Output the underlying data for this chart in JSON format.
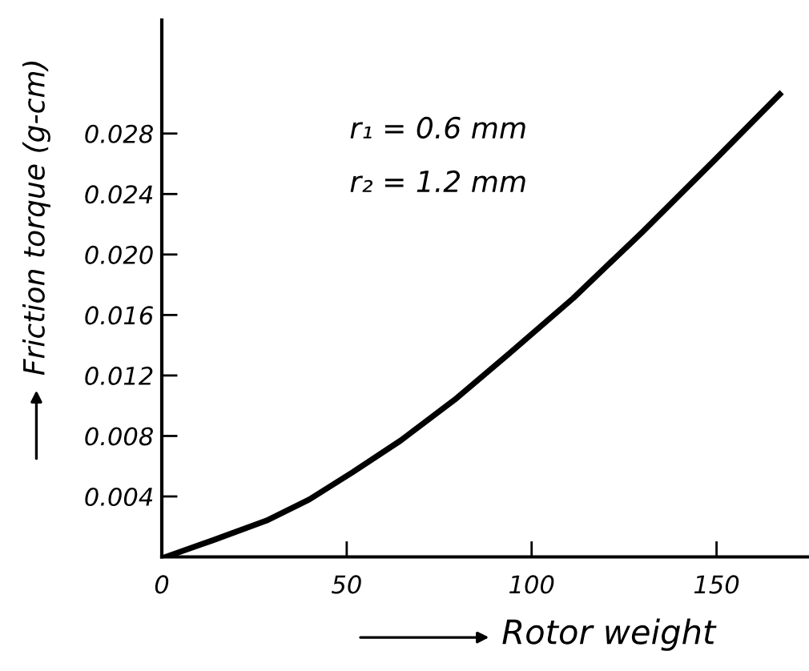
{
  "chart_data": {
    "type": "line",
    "xlabel": "Rotor weight",
    "ylabel": "Friction torque (g-cm)",
    "annotations": [
      "r₁ = 0.6 mm",
      "r₂ = 1.2 mm"
    ],
    "x": [
      1,
      13.8,
      28.3,
      39.9,
      51.6,
      64.6,
      79.2,
      93.7,
      111.2,
      130.0,
      148.9,
      167.1
    ],
    "series": [
      {
        "color": "#000000",
        "values": [
          0,
          0.0011,
          0.0024,
          0.0038,
          0.0056,
          0.0077,
          0.0104,
          0.0134,
          0.0171,
          0.0215,
          0.0261,
          0.0306
        ]
      }
    ],
    "xlim": [
      0,
      175
    ],
    "ylim": [
      0,
      0.0355
    ],
    "xticks": [
      0,
      50,
      100,
      150
    ],
    "yticks": [
      {
        "value": 0,
        "label": null
      },
      0.004,
      0.008,
      0.012,
      0.016,
      {
        "value": 0.02,
        "label": "0.020"
      },
      0.024,
      0.028
    ],
    "grid": false,
    "legend": false,
    "marker": "none",
    "line_style": "solid"
  }
}
